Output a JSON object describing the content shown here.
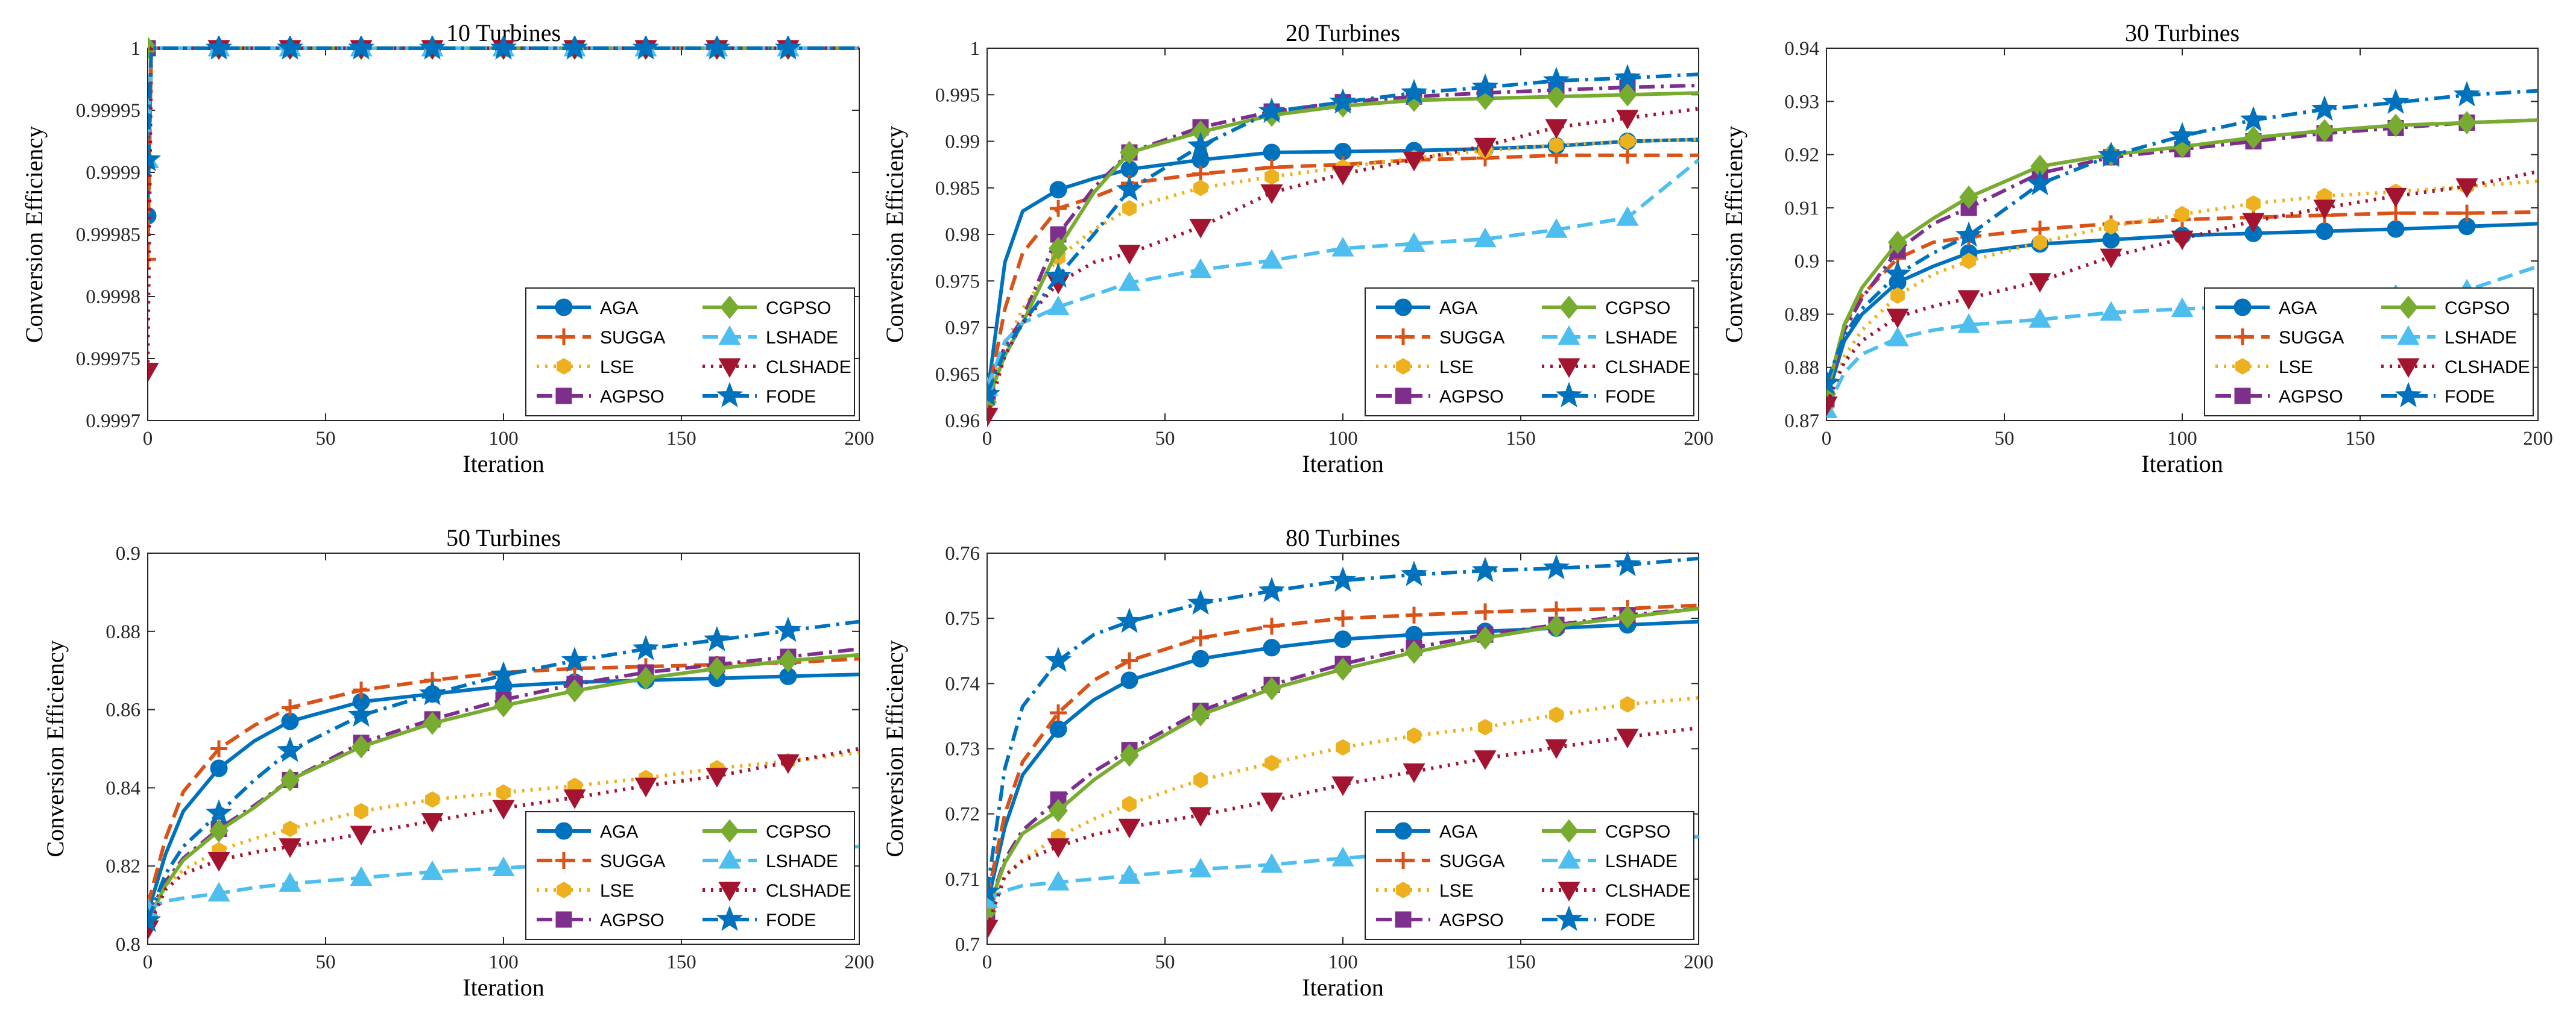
{
  "figure": {
    "xlabel": "Iteration",
    "ylabel": "Conversion Efficiency"
  },
  "series_styles": [
    {
      "name": "AGA",
      "color": "#0072BD",
      "dash": "solid",
      "marker": "circle"
    },
    {
      "name": "SUGGA",
      "color": "#D95319",
      "dash": "dashed",
      "marker": "plus"
    },
    {
      "name": "LSE",
      "color": "#EDB120",
      "dash": "dotted",
      "marker": "hexagon"
    },
    {
      "name": "AGPSO",
      "color": "#7E2F8E",
      "dash": "dashdot",
      "marker": "square"
    },
    {
      "name": "CGPSO",
      "color": "#77AC30",
      "dash": "solid",
      "marker": "diamond"
    },
    {
      "name": "LSHADE",
      "color": "#4DBEEE",
      "dash": "dashed",
      "marker": "triangle-up"
    },
    {
      "name": "CLSHADE",
      "color": "#A2142F",
      "dash": "dotted",
      "marker": "triangle-down"
    },
    {
      "name": "FODE",
      "color": "#0072BD",
      "dash": "dashdot",
      "marker": "star"
    }
  ],
  "chart_data": [
    {
      "type": "line",
      "title": "10 Turbines",
      "xlabel": "Iteration",
      "ylabel": "Conversion Efficiency",
      "xlim": [
        0,
        200
      ],
      "ylim": [
        0.9997,
        1
      ],
      "xticks": [
        "0",
        "50",
        "100",
        "150",
        "200"
      ],
      "yticks": [
        "0.9997",
        "0.99975",
        "0.9998",
        "0.99985",
        "0.9999",
        "0.99995",
        "1"
      ],
      "legend_position": "bottom-right",
      "x": [
        0,
        1,
        2,
        20,
        40,
        60,
        80,
        100,
        120,
        140,
        160,
        180,
        200
      ],
      "series": [
        {
          "name": "AGA",
          "values": [
            0.999865,
            1,
            1,
            1,
            1,
            1,
            1,
            1,
            1,
            1,
            1,
            1,
            1
          ]
        },
        {
          "name": "SUGGA",
          "values": [
            0.99983,
            1,
            1,
            1,
            1,
            1,
            1,
            1,
            1,
            1,
            1,
            1,
            1
          ]
        },
        {
          "name": "LSE",
          "values": [
            1,
            1,
            1,
            1,
            1,
            1,
            1,
            1,
            1,
            1,
            1,
            1,
            1
          ]
        },
        {
          "name": "AGPSO",
          "values": [
            1,
            1,
            1,
            1,
            1,
            1,
            1,
            1,
            1,
            1,
            1,
            1,
            1
          ]
        },
        {
          "name": "CGPSO",
          "values": [
            1,
            1,
            1,
            1,
            1,
            1,
            1,
            1,
            1,
            1,
            1,
            1,
            1
          ]
        },
        {
          "name": "LSHADE",
          "values": [
            0.99991,
            1,
            1,
            1,
            1,
            1,
            1,
            1,
            1,
            1,
            1,
            1,
            1
          ]
        },
        {
          "name": "CLSHADE",
          "values": [
            0.99974,
            1,
            1,
            1,
            1,
            1,
            1,
            1,
            1,
            1,
            1,
            1,
            1
          ]
        },
        {
          "name": "FODE",
          "values": [
            0.99991,
            1,
            1,
            1,
            1,
            1,
            1,
            1,
            1,
            1,
            1,
            1,
            1
          ]
        }
      ]
    },
    {
      "type": "line",
      "title": "20 Turbines",
      "xlabel": "Iteration",
      "ylabel": "Conversion Efficiency",
      "xlim": [
        0,
        200
      ],
      "ylim": [
        0.96,
        1
      ],
      "xticks": [
        "0",
        "50",
        "100",
        "150",
        "200"
      ],
      "yticks": [
        "0.96",
        "0.965",
        "0.97",
        "0.975",
        "0.98",
        "0.985",
        "0.99",
        "0.995",
        "1"
      ],
      "legend_position": "bottom-right",
      "x": [
        0,
        5,
        10,
        20,
        30,
        40,
        60,
        80,
        100,
        120,
        140,
        160,
        180,
        200
      ],
      "series": [
        {
          "name": "AGA",
          "values": [
            0.9625,
            0.977,
            0.9825,
            0.9848,
            0.986,
            0.987,
            0.988,
            0.9888,
            0.9889,
            0.989,
            0.9892,
            0.9895,
            0.99,
            0.9902
          ]
        },
        {
          "name": "SUGGA",
          "values": [
            0.962,
            0.972,
            0.978,
            0.9828,
            0.984,
            0.9855,
            0.9865,
            0.9872,
            0.9875,
            0.988,
            0.9882,
            0.9885,
            0.9885,
            0.9885
          ]
        },
        {
          "name": "LSE",
          "values": [
            0.962,
            0.968,
            0.972,
            0.9775,
            0.9805,
            0.9828,
            0.985,
            0.9862,
            0.9872,
            0.9882,
            0.989,
            0.9896,
            0.99,
            0.9902
          ]
        },
        {
          "name": "AGPSO",
          "values": [
            0.963,
            0.968,
            0.971,
            0.98,
            0.985,
            0.9888,
            0.9915,
            0.9932,
            0.9942,
            0.9948,
            0.9952,
            0.9955,
            0.9958,
            0.996
          ]
        },
        {
          "name": "CGPSO",
          "values": [
            0.962,
            0.967,
            0.9705,
            0.9785,
            0.9845,
            0.9888,
            0.991,
            0.9928,
            0.9938,
            0.9944,
            0.9946,
            0.9948,
            0.995,
            0.9952
          ]
        },
        {
          "name": "LSHADE",
          "values": [
            0.9635,
            0.9685,
            0.9705,
            0.9722,
            0.9735,
            0.9748,
            0.9762,
            0.9772,
            0.9785,
            0.979,
            0.9795,
            0.9805,
            0.9818,
            0.988
          ]
        },
        {
          "name": "CLSHADE",
          "values": [
            0.9605,
            0.967,
            0.9705,
            0.9748,
            0.977,
            0.978,
            0.9808,
            0.9845,
            0.9865,
            0.988,
            0.9895,
            0.9915,
            0.9925,
            0.9935
          ]
        },
        {
          "name": "FODE",
          "values": [
            0.9628,
            0.9675,
            0.9705,
            0.9755,
            0.98,
            0.9848,
            0.9895,
            0.9932,
            0.9942,
            0.9952,
            0.9958,
            0.9965,
            0.9968,
            0.9972
          ]
        }
      ]
    },
    {
      "type": "line",
      "title": "30 Turbines",
      "xlabel": "Iteration",
      "ylabel": "Conversion Efficiency",
      "xlim": [
        0,
        200
      ],
      "ylim": [
        0.87,
        0.94
      ],
      "xticks": [
        "0",
        "50",
        "100",
        "150",
        "200"
      ],
      "yticks": [
        "0.87",
        "0.88",
        "0.89",
        "0.9",
        "0.91",
        "0.92",
        "0.93",
        "0.94"
      ],
      "legend_position": "bottom-right",
      "x": [
        0,
        5,
        10,
        20,
        30,
        40,
        60,
        80,
        100,
        120,
        140,
        160,
        180,
        200
      ],
      "series": [
        {
          "name": "AGA",
          "values": [
            0.874,
            0.885,
            0.89,
            0.896,
            0.899,
            0.9015,
            0.9032,
            0.904,
            0.9048,
            0.9052,
            0.9056,
            0.906,
            0.9065,
            0.907
          ]
        },
        {
          "name": "SUGGA",
          "values": [
            0.875,
            0.888,
            0.8935,
            0.9005,
            0.9035,
            0.9045,
            0.906,
            0.907,
            0.9078,
            0.9082,
            0.9086,
            0.909,
            0.909,
            0.9092
          ]
        },
        {
          "name": "LSE",
          "values": [
            0.873,
            0.882,
            0.887,
            0.8935,
            0.8975,
            0.9,
            0.9035,
            0.9065,
            0.9088,
            0.9108,
            0.9122,
            0.913,
            0.914,
            0.915
          ]
        },
        {
          "name": "AGPSO",
          "values": [
            0.874,
            0.887,
            0.893,
            0.902,
            0.907,
            0.91,
            0.9165,
            0.9195,
            0.921,
            0.9225,
            0.924,
            0.925,
            0.926,
            0.9265
          ]
        },
        {
          "name": "CGPSO",
          "values": [
            0.875,
            0.888,
            0.895,
            0.9035,
            0.908,
            0.912,
            0.9178,
            0.92,
            0.9215,
            0.9232,
            0.9245,
            0.9255,
            0.926,
            0.9265
          ]
        },
        {
          "name": "LSHADE",
          "values": [
            0.872,
            0.879,
            0.8825,
            0.8855,
            0.887,
            0.888,
            0.889,
            0.8903,
            0.891,
            0.8915,
            0.8925,
            0.8935,
            0.8945,
            0.899
          ]
        },
        {
          "name": "CLSHADE",
          "values": [
            0.873,
            0.881,
            0.885,
            0.8895,
            0.8915,
            0.893,
            0.8962,
            0.9008,
            0.9042,
            0.9075,
            0.91,
            0.9122,
            0.914,
            0.9168
          ]
        },
        {
          "name": "FODE",
          "values": [
            0.877,
            0.886,
            0.891,
            0.8975,
            0.9015,
            0.9048,
            0.9145,
            0.9198,
            0.9235,
            0.9265,
            0.9285,
            0.9298,
            0.9312,
            0.932
          ]
        }
      ]
    },
    {
      "type": "line",
      "title": "50 Turbines",
      "xlabel": "Iteration",
      "ylabel": "Conversion Efficiency",
      "xlim": [
        0,
        200
      ],
      "ylim": [
        0.8,
        0.9
      ],
      "xticks": [
        "0",
        "50",
        "100",
        "150",
        "200"
      ],
      "yticks": [
        "0.8",
        "0.82",
        "0.84",
        "0.86",
        "0.88",
        "0.9"
      ],
      "legend_position": "bottom-right",
      "x": [
        0,
        5,
        10,
        20,
        30,
        40,
        60,
        80,
        100,
        120,
        140,
        160,
        180,
        200
      ],
      "series": [
        {
          "name": "AGA",
          "values": [
            0.808,
            0.823,
            0.834,
            0.845,
            0.852,
            0.857,
            0.862,
            0.864,
            0.866,
            0.867,
            0.8675,
            0.868,
            0.8685,
            0.869
          ]
        },
        {
          "name": "SUGGA",
          "values": [
            0.81,
            0.827,
            0.839,
            0.85,
            0.856,
            0.8605,
            0.865,
            0.8675,
            0.8695,
            0.8705,
            0.871,
            0.8715,
            0.872,
            0.873
          ]
        },
        {
          "name": "LSE",
          "values": [
            0.806,
            0.815,
            0.819,
            0.824,
            0.827,
            0.8295,
            0.834,
            0.837,
            0.8388,
            0.8405,
            0.8425,
            0.845,
            0.8468,
            0.849
          ]
        },
        {
          "name": "AGPSO",
          "values": [
            0.807,
            0.816,
            0.822,
            0.8295,
            0.8355,
            0.842,
            0.8515,
            0.8575,
            0.8625,
            0.8665,
            0.8695,
            0.8715,
            0.8735,
            0.8755
          ]
        },
        {
          "name": "CGPSO",
          "values": [
            0.806,
            0.815,
            0.8215,
            0.829,
            0.835,
            0.842,
            0.8505,
            0.8565,
            0.861,
            0.8648,
            0.868,
            0.8705,
            0.8725,
            0.874
          ]
        },
        {
          "name": "LSHADE",
          "values": [
            0.809,
            0.811,
            0.8118,
            0.813,
            0.8145,
            0.8155,
            0.817,
            0.8185,
            0.8195,
            0.8205,
            0.822,
            0.823,
            0.824,
            0.825
          ]
        },
        {
          "name": "CLSHADE",
          "values": [
            0.804,
            0.814,
            0.818,
            0.8215,
            0.8235,
            0.825,
            0.8282,
            0.8315,
            0.8348,
            0.8375,
            0.8405,
            0.843,
            0.8465,
            0.85
          ]
        },
        {
          "name": "FODE",
          "values": [
            0.806,
            0.818,
            0.825,
            0.8335,
            0.842,
            0.8495,
            0.8585,
            0.864,
            0.8688,
            0.8725,
            0.8755,
            0.8778,
            0.8802,
            0.8825
          ]
        }
      ]
    },
    {
      "type": "line",
      "title": "80 Turbines",
      "xlabel": "Iteration",
      "ylabel": "Conversion Efficiency",
      "xlim": [
        0,
        200
      ],
      "ylim": [
        0.7,
        0.76
      ],
      "xticks": [
        "0",
        "50",
        "100",
        "150",
        "200"
      ],
      "yticks": [
        "0.7",
        "0.71",
        "0.72",
        "0.73",
        "0.74",
        "0.75",
        "0.76"
      ],
      "legend_position": "bottom-right",
      "x": [
        0,
        5,
        10,
        20,
        30,
        40,
        60,
        80,
        100,
        120,
        140,
        160,
        180,
        200
      ],
      "series": [
        {
          "name": "AGA",
          "values": [
            0.706,
            0.718,
            0.726,
            0.733,
            0.7375,
            0.7405,
            0.7438,
            0.7455,
            0.7468,
            0.7475,
            0.748,
            0.7485,
            0.749,
            0.7495
          ]
        },
        {
          "name": "SUGGA",
          "values": [
            0.707,
            0.72,
            0.728,
            0.7355,
            0.7405,
            0.7435,
            0.747,
            0.7488,
            0.75,
            0.7505,
            0.751,
            0.7513,
            0.7515,
            0.752
          ]
        },
        {
          "name": "LSE",
          "values": [
            0.704,
            0.7105,
            0.713,
            0.7165,
            0.7192,
            0.7215,
            0.7252,
            0.7278,
            0.7302,
            0.732,
            0.7333,
            0.7352,
            0.7368,
            0.7378
          ]
        },
        {
          "name": "AGPSO",
          "values": [
            0.705,
            0.713,
            0.7175,
            0.7222,
            0.7265,
            0.7298,
            0.7358,
            0.7398,
            0.743,
            0.7455,
            0.7475,
            0.749,
            0.7505,
            0.7515
          ]
        },
        {
          "name": "CGPSO",
          "values": [
            0.705,
            0.7125,
            0.717,
            0.7205,
            0.7252,
            0.729,
            0.7352,
            0.7392,
            0.7422,
            0.7448,
            0.747,
            0.7488,
            0.7502,
            0.7515
          ]
        },
        {
          "name": "LSHADE",
          "values": [
            0.7068,
            0.7082,
            0.709,
            0.7095,
            0.71,
            0.7105,
            0.7115,
            0.7122,
            0.7132,
            0.714,
            0.7148,
            0.7155,
            0.716,
            0.7165
          ]
        },
        {
          "name": "CLSHADE",
          "values": [
            0.7025,
            0.7105,
            0.7128,
            0.715,
            0.7168,
            0.718,
            0.7198,
            0.722,
            0.7245,
            0.7265,
            0.7285,
            0.7302,
            0.7318,
            0.7332
          ]
        },
        {
          "name": "FODE",
          "values": [
            0.708,
            0.727,
            0.7365,
            0.7435,
            0.7475,
            0.7495,
            0.7523,
            0.7542,
            0.7558,
            0.7567,
            0.7573,
            0.7577,
            0.7582,
            0.7592
          ]
        }
      ]
    }
  ]
}
